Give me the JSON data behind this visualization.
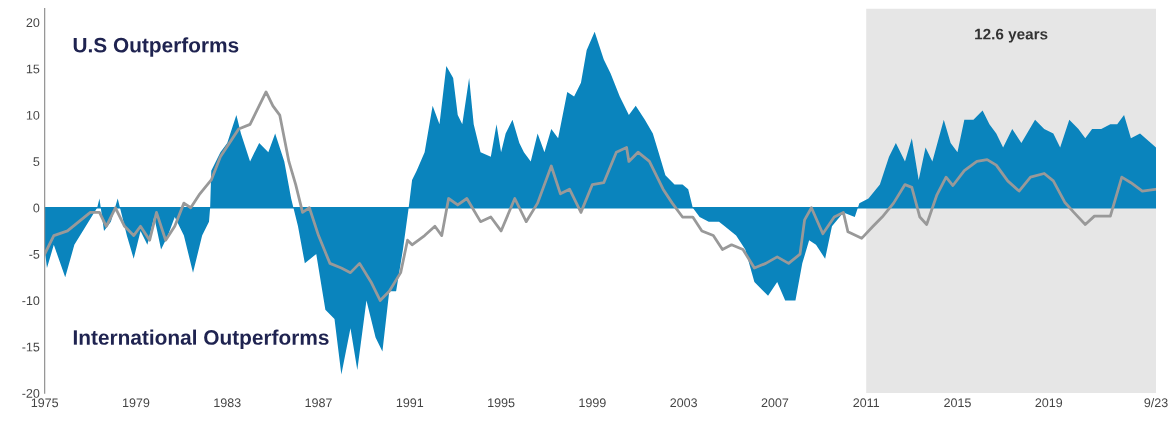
{
  "chart_data": {
    "type": "area",
    "xlim": [
      1975,
      2023.7
    ],
    "xticks": [
      1975,
      1979,
      1983,
      1987,
      1991,
      1995,
      1999,
      2003,
      2007,
      2011,
      2015,
      2019,
      {
        "value": 2023.7,
        "label": "9/23"
      }
    ],
    "ylim": [
      -20,
      21.5
    ],
    "yticks": [
      -20,
      -15,
      -10,
      -5,
      0,
      5,
      10,
      15,
      20
    ],
    "grid": false,
    "ref_lines": [
      {
        "axis": "y",
        "value": 0,
        "color": "#0a84bd"
      }
    ],
    "annotations": [
      "U.S Outperforms",
      "International Outperforms"
    ],
    "bands": [
      {
        "axis": "x",
        "from": 2011,
        "to": 2023.7,
        "label": "12.6 years",
        "color": "#e6e6e6"
      }
    ],
    "series": [
      {
        "color": "#0a84bd",
        "x": [
          1975.0,
          1975.1,
          1975.4,
          1975.9,
          1976.3,
          1976.8,
          1977.3,
          1977.4,
          1977.6,
          1977.9,
          1978.2,
          1978.6,
          1978.9,
          1979.2,
          1979.5,
          1979.8,
          1980.1,
          1980.4,
          1980.7,
          1981.1,
          1981.5,
          1981.9,
          1982.2,
          1982.25,
          1982.3,
          1982.7,
          1983.0,
          1983.4,
          1983.6,
          1984.0,
          1984.4,
          1984.8,
          1985.1,
          1985.5,
          1985.8,
          1986.1,
          1986.4,
          1986.9,
          1987.3,
          1987.7,
          1988.0,
          1988.4,
          1988.7,
          1989.1,
          1989.5,
          1989.8,
          1990.1,
          1990.4,
          1990.7,
          1990.95,
          1991.1,
          1991.3,
          1991.65,
          1992.0,
          1992.3,
          1992.6,
          1992.9,
          1993.1,
          1993.3,
          1993.6,
          1993.8,
          1994.1,
          1994.55,
          1994.8,
          1995.0,
          1995.2,
          1995.5,
          1995.8,
          1996.0,
          1996.3,
          1996.6,
          1996.9,
          1997.2,
          1997.5,
          1997.9,
          1998.2,
          1998.5,
          1998.75,
          1999.1,
          1999.5,
          1999.8,
          2000.2,
          2000.6,
          2000.9,
          2001.3,
          2001.65,
          2001.9,
          2002.2,
          2002.6,
          2002.95,
          2003.2,
          2003.4,
          2003.7,
          2004.1,
          2004.55,
          2004.8,
          2005.3,
          2005.7,
          2006.1,
          2006.7,
          2007.1,
          2007.45,
          2007.9,
          2008.2,
          2008.5,
          2008.8,
          2009.2,
          2009.5,
          2010.0,
          2010.5,
          2010.7,
          2011.1,
          2011.6,
          2012.0,
          2012.3,
          2012.7,
          2013.0,
          2013.3,
          2013.6,
          2013.9,
          2014.4,
          2014.7,
          2015.0,
          2015.3,
          2015.7,
          2016.1,
          2016.4,
          2016.7,
          2017.0,
          2017.4,
          2017.8,
          2018.4,
          2018.8,
          2019.2,
          2019.5,
          2019.9,
          2020.3,
          2020.6,
          2020.9,
          2021.3,
          2021.7,
          2022.0,
          2022.3,
          2022.6,
          2023.0,
          2023.7
        ],
        "values": [
          -4.5,
          -6.5,
          -4,
          -7.5,
          -4,
          -2,
          0,
          1,
          -2.5,
          -1.5,
          1,
          -3,
          -5.5,
          -2.5,
          -4,
          -1,
          -4.5,
          -3,
          -1,
          -3,
          -7,
          -3,
          -1.5,
          0,
          4,
          6,
          7,
          10,
          8,
          5,
          7,
          6,
          8,
          5,
          1,
          -2,
          -6,
          -5,
          -11,
          -12,
          -18,
          -13,
          -17.5,
          -10,
          -14,
          -15.5,
          -9,
          -9,
          -4.5,
          0,
          3,
          4,
          6,
          11,
          9,
          15.3,
          14,
          10,
          9,
          14,
          9,
          6,
          5.5,
          9,
          6,
          8,
          9.5,
          7,
          6,
          5,
          8,
          6,
          8.5,
          7.5,
          12.5,
          12,
          13.5,
          17,
          19,
          16,
          14.5,
          12,
          10,
          11,
          9.5,
          8,
          6,
          3.5,
          2.5,
          2.5,
          2,
          0,
          -1,
          -1.5,
          -1.5,
          -2,
          -3,
          -4.5,
          -8,
          -9.5,
          -8,
          -10,
          -10,
          -6,
          -3.5,
          -4,
          -5.5,
          -2,
          -0.5,
          -1,
          0.5,
          1,
          2.5,
          5.5,
          7,
          5,
          7.5,
          3,
          6.5,
          5,
          9.5,
          7,
          6,
          9.5,
          9.5,
          10.5,
          9,
          8,
          6.5,
          8.5,
          7,
          9.5,
          8.5,
          8,
          6.5,
          9.5,
          8.5,
          7.5,
          8.5,
          8.5,
          9,
          9,
          10,
          7.5,
          8,
          6.5
        ]
      },
      {
        "type": "line",
        "color": "#999999",
        "x": [
          1975.0,
          1975.4,
          1976.0,
          1976.5,
          1977.0,
          1977.4,
          1977.7,
          1978.1,
          1978.5,
          1978.9,
          1979.2,
          1979.6,
          1979.9,
          1980.3,
          1980.7,
          1981.1,
          1981.4,
          1981.8,
          1982.3,
          1982.7,
          1983.1,
          1983.5,
          1984.0,
          1984.3,
          1984.7,
          1985.0,
          1985.3,
          1985.7,
          1986.0,
          1986.3,
          1986.6,
          1987.0,
          1987.5,
          1988.0,
          1988.4,
          1988.8,
          1989.3,
          1989.7,
          1990.1,
          1990.6,
          1990.9,
          1991.1,
          1991.65,
          1992.1,
          1992.4,
          1992.7,
          1993.1,
          1993.5,
          1994.1,
          1994.55,
          1995.0,
          1995.6,
          1996.1,
          1996.6,
          1997.2,
          1997.6,
          1998.0,
          1998.5,
          1999.0,
          1999.5,
          2000.05,
          2000.5,
          2000.6,
          2001.0,
          2001.5,
          2002.1,
          2002.5,
          2002.95,
          2003.4,
          2003.8,
          2004.3,
          2004.7,
          2005.1,
          2005.6,
          2006.1,
          2006.6,
          2007.1,
          2007.6,
          2008.1,
          2008.3,
          2008.6,
          2009.1,
          2009.6,
          2010.0,
          2010.2,
          2010.8,
          2011.3,
          2011.7,
          2012.2,
          2012.7,
          2013.0,
          2013.35,
          2013.65,
          2014.1,
          2014.5,
          2014.8,
          2015.3,
          2015.85,
          2016.3,
          2016.7,
          2017.2,
          2017.7,
          2018.2,
          2018.8,
          2019.2,
          2019.7,
          2020.1,
          2020.6,
          2021.0,
          2021.7,
          2022.2,
          2022.6,
          2023.1,
          2023.7
        ],
        "values": [
          -5,
          -3,
          -2.5,
          -1.5,
          -0.5,
          -0.5,
          -2,
          0,
          -2,
          -3,
          -2,
          -3.5,
          -0.5,
          -3.5,
          -2,
          0.5,
          0,
          1.5,
          3,
          5.5,
          7,
          8.5,
          9,
          10.5,
          12.5,
          11,
          10,
          5,
          2.5,
          -0.5,
          0,
          -3,
          -6,
          -6.5,
          -7,
          -6,
          -8,
          -10,
          -9,
          -7,
          -3.5,
          -4,
          -3,
          -2,
          -3,
          1,
          0.3,
          1,
          -1.5,
          -1,
          -2.5,
          1,
          -1.5,
          0.5,
          4.5,
          1.5,
          2,
          -0.5,
          2.5,
          2.7,
          6,
          6.5,
          5,
          6,
          5,
          2,
          0.5,
          -1,
          -1,
          -2.5,
          -3,
          -4.5,
          -4,
          -4.5,
          -6.5,
          -6,
          -5.3,
          -6,
          -5,
          -1.3,
          0,
          -2.8,
          -1,
          -0.5,
          -2.6,
          -3.3,
          -2,
          -1,
          0.5,
          2.5,
          2.2,
          -1,
          -1.8,
          1.4,
          3.3,
          2.4,
          4,
          5,
          5.2,
          4.6,
          2.9,
          1.8,
          3.3,
          3.7,
          2.9,
          0.6,
          -0.5,
          -1.8,
          -0.9,
          -0.9,
          3.3,
          2.7,
          1.8,
          2
        ]
      }
    ]
  }
}
